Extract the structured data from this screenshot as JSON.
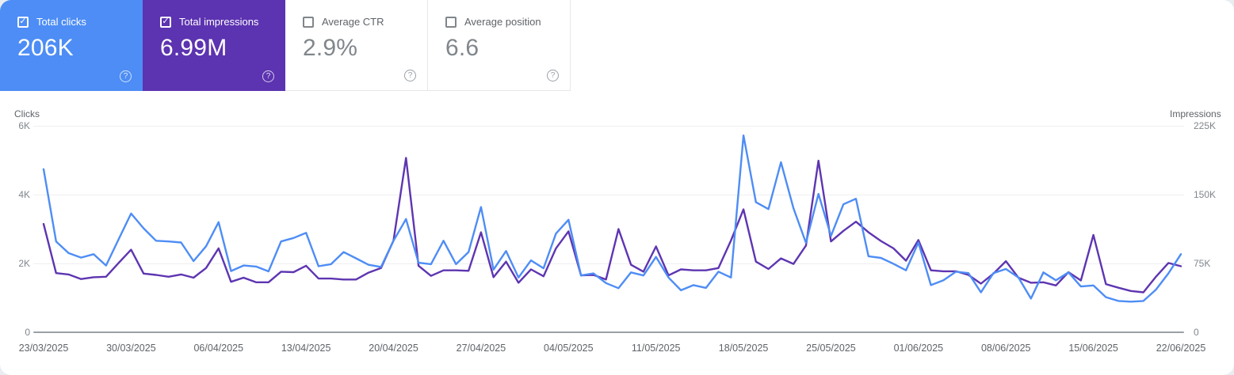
{
  "icons": {
    "help": "?",
    "check": "✓"
  },
  "cards": [
    {
      "label": "Total clicks",
      "value": "206K",
      "checked": true,
      "bg": "#4d8df5"
    },
    {
      "label": "Total impressions",
      "value": "6.99M",
      "checked": true,
      "bg": "#5c33b0"
    },
    {
      "label": "Average CTR",
      "value": "2.9%",
      "checked": false
    },
    {
      "label": "Average position",
      "value": "6.6",
      "checked": false
    }
  ],
  "chart_data": {
    "type": "line",
    "granularity": "daily",
    "date_range": {
      "start": "23/03/2025",
      "end": "22/06/2025"
    },
    "x_tick_labels": [
      "23/03/2025",
      "30/03/2025",
      "06/04/2025",
      "13/04/2025",
      "20/04/2025",
      "27/04/2025",
      "04/05/2025",
      "11/05/2025",
      "18/05/2025",
      "25/05/2025",
      "01/06/2025",
      "08/06/2025",
      "15/06/2025",
      "22/06/2025"
    ],
    "y_left": {
      "label": "Clicks",
      "ticks": [
        "6K",
        "4K",
        "2K",
        "0"
      ],
      "max": 6000
    },
    "y_right": {
      "label": "Impressions",
      "ticks": [
        "225K",
        "150K",
        "75K",
        "0"
      ],
      "max": 225000
    },
    "legend_position": "none",
    "grid": true,
    "series": [
      {
        "name": "Clicks",
        "axis": "left",
        "color": "#4e8df5",
        "values": [
          4740,
          2640,
          2300,
          2170,
          2270,
          1940,
          2700,
          3450,
          3020,
          2660,
          2640,
          2610,
          2070,
          2500,
          3200,
          1780,
          1940,
          1910,
          1770,
          2640,
          2740,
          2890,
          1920,
          1980,
          2330,
          2150,
          1960,
          1900,
          2660,
          3290,
          2020,
          1980,
          2660,
          1980,
          2330,
          3640,
          1820,
          2360,
          1590,
          2090,
          1860,
          2870,
          3270,
          1650,
          1710,
          1430,
          1280,
          1740,
          1650,
          2190,
          1590,
          1220,
          1370,
          1290,
          1760,
          1590,
          5720,
          3780,
          3580,
          4940,
          3600,
          2600,
          4020,
          2800,
          3720,
          3880,
          2210,
          2160,
          1990,
          1800,
          2610,
          1370,
          1510,
          1760,
          1720,
          1160,
          1720,
          1840,
          1590,
          980,
          1740,
          1510,
          1740,
          1330,
          1360,
          1020,
          910,
          890,
          910,
          1240,
          1710,
          2270
        ]
      },
      {
        "name": "Impressions",
        "axis": "right",
        "color": "#5e35b1",
        "values": [
          118000,
          64500,
          63000,
          58000,
          60000,
          60500,
          75500,
          90000,
          64000,
          62500,
          60500,
          63000,
          59500,
          70000,
          91500,
          55000,
          59500,
          54500,
          54500,
          66000,
          65500,
          72500,
          58500,
          58500,
          57500,
          57500,
          65000,
          70000,
          100000,
          190000,
          72500,
          61500,
          67500,
          67500,
          67000,
          109000,
          60000,
          77000,
          54000,
          68500,
          61000,
          91500,
          110000,
          62000,
          62500,
          57500,
          112500,
          73500,
          66000,
          93500,
          62000,
          68500,
          67500,
          67500,
          70000,
          100000,
          134000,
          77000,
          69000,
          80500,
          74500,
          94500,
          187000,
          99000,
          110500,
          120500,
          109000,
          99500,
          91500,
          78000,
          100500,
          67500,
          66500,
          66500,
          62500,
          53000,
          64000,
          77500,
          59500,
          54000,
          54500,
          51000,
          65500,
          56500,
          106000,
          52500,
          48500,
          45000,
          43500,
          60500,
          75500,
          72000
        ]
      }
    ]
  }
}
